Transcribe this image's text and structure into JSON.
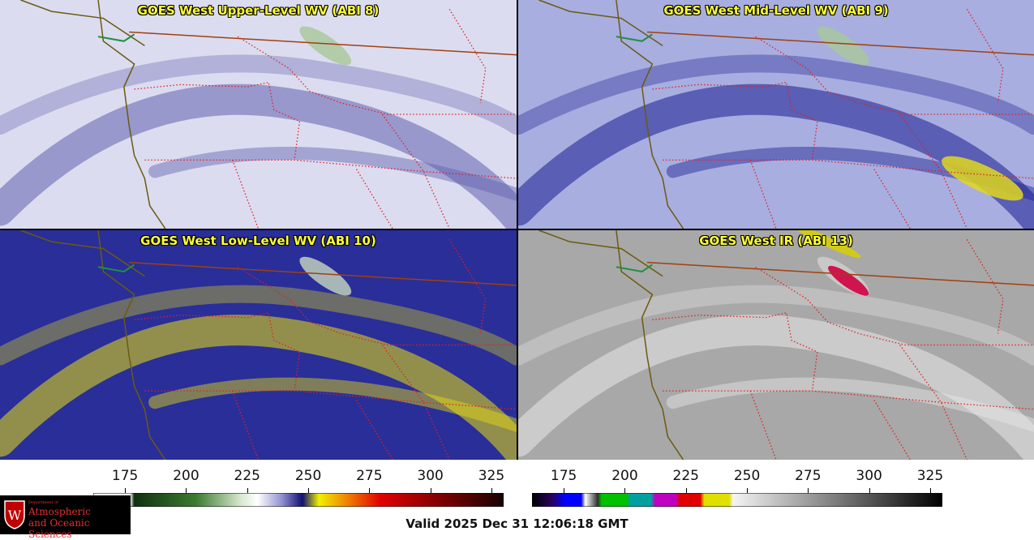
{
  "panels": [
    {
      "title": "GOES West Upper-Level WV (ABI 8)",
      "colors": {
        "base": "#dcdcf0",
        "band": "#6060b0",
        "green": "#a8c898",
        "yellow": "#e8e040"
      }
    },
    {
      "title": "GOES West Mid-Level WV (ABI 9)",
      "colors": {
        "base": "#a8aee0",
        "band": "#1a1e90",
        "green": "#a8c898",
        "yellow": "#e0d820"
      }
    },
    {
      "title": "GOES West Low-Level WV (ABI 10)",
      "colors": {
        "base": "#2a2e98",
        "band": "#e8e010",
        "green": "#c8d8c0",
        "yellow": "#f0e800"
      }
    },
    {
      "title": "GOES West IR (ABI 13)",
      "colors": {
        "base": "#a8a8a8",
        "band": "#e8e8e8",
        "green": "#d0d0d0",
        "yellow": "#d8d000"
      }
    }
  ],
  "colorbars": [
    {
      "name": "wv-colorbar",
      "ticks": [
        "175",
        "200",
        "225",
        "250",
        "275",
        "300",
        "325"
      ]
    },
    {
      "name": "ir-colorbar",
      "ticks": [
        "175",
        "200",
        "225",
        "250",
        "275",
        "300",
        "325"
      ]
    }
  ],
  "logo": {
    "line1": "Department of",
    "line2": "Atmospheric",
    "line3": "and Oceanic Sciences"
  },
  "valid_text": "Valid 2025 Dec 31 12:06:18 GMT",
  "colors": {
    "border_red": "#e02020",
    "coast": "#6b5a10",
    "title_yellow": "#ffff33",
    "lake_green": "#209040"
  }
}
